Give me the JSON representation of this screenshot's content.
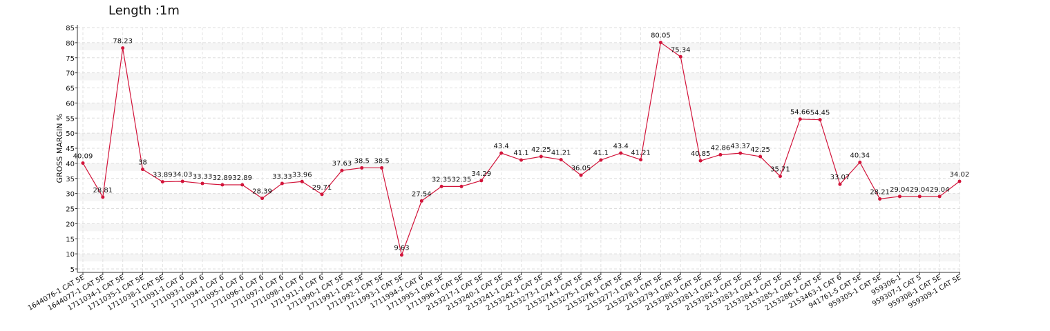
{
  "chart_data": {
    "type": "line",
    "title": "Length :1m",
    "y_label": "GROSS MARGIN %",
    "categories": [
      "1644076-1 CAT 5E",
      "1644077-1 CAT 5E",
      "1711034-1 CAT 5E",
      "1711035-1 CAT 5E",
      "1711038-1 CAT 5E",
      "1711091-1 CAT 6",
      "1711093-1 CAT 6",
      "1711094-1 CAT 6",
      "1711095-1 CAT 6",
      "1711096-1 CAT 6",
      "1711097-1 CAT 6",
      "1711098-1 CAT 6",
      "1711911-1 CAT 6",
      "1711990-1 CAT 5E",
      "1711991-1 CAT 5E",
      "1711992-1 CAT 5E",
      "1711993-1 CAT 5E",
      "1711994-1 CAT 6",
      "1711995-1 CAT 5E",
      "1711996-1 CAT 5E",
      "2153217-1 CAT 5E",
      "2153240-1 CAT 5E",
      "2153241-1 CAT 5E",
      "2153242-1 CAT 5E",
      "2153273-1 CAT 5E",
      "2153274-1 CAT 5E",
      "2153275-1 CAT 5E",
      "2153276-1 CAT 5E",
      "2153277-1 CAT 5E",
      "2153278-1 CAT 5E",
      "2153279-1 CAT 5E",
      "2153280-1 CAT 5E",
      "2153281-1 CAT 5E",
      "2153282-1 CAT 5E",
      "2153283-1 CAT 5E",
      "2153284-1 CAT 5E",
      "2153285-1 CAT 5E",
      "2153286-1 CAT 5E",
      "2153463-1 CAT 6",
      "941761-5 CAT 5E",
      "959305-1 CAT 5E",
      "959306-1",
      "959307-1 CAT 5",
      "959308-1 CAT 5E",
      "959309-1 CAT 5E"
    ],
    "values": [
      40.09,
      28.81,
      78.23,
      38,
      33.89,
      34.03,
      33.33,
      32.89,
      32.89,
      28.39,
      33.33,
      33.96,
      29.71,
      37.63,
      38.5,
      38.5,
      9.63,
      27.54,
      32.35,
      32.35,
      34.29,
      43.4,
      41.1,
      42.25,
      41.21,
      36.05,
      41.1,
      43.4,
      41.21,
      80.05,
      75.34,
      40.85,
      42.86,
      43.37,
      42.25,
      35.71,
      54.66,
      54.45,
      33.07,
      40.34,
      28.21,
      29.04,
      29.04,
      29.04,
      34.02
    ],
    "color": "#d2143a",
    "ylim": [
      5,
      85
    ],
    "yticks": [
      5,
      10,
      15,
      20,
      25,
      30,
      35,
      40,
      45,
      50,
      55,
      60,
      65,
      70,
      75,
      80,
      85
    ],
    "grid": true
  }
}
